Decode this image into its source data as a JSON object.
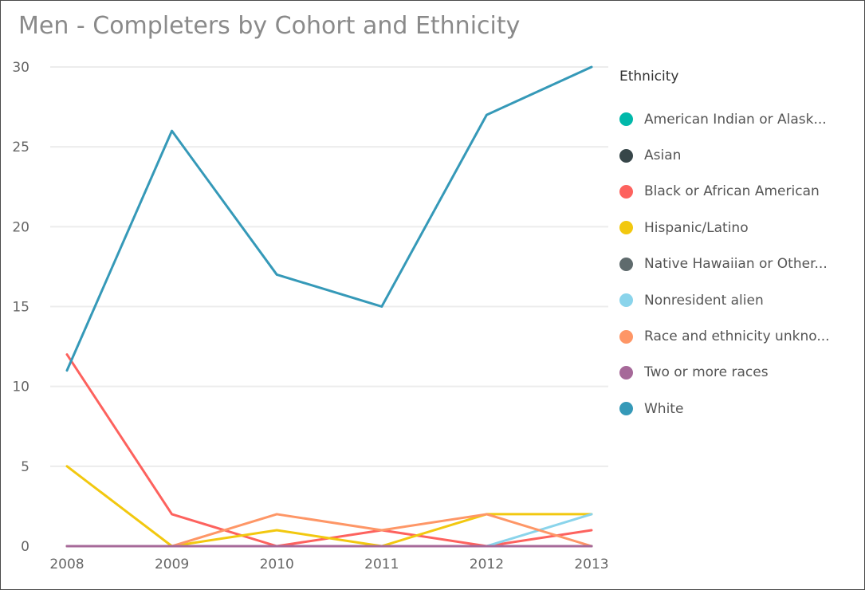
{
  "chart_data": {
    "type": "line",
    "title": "Men - Completers by Cohort and Ethnicity",
    "xlabel": "",
    "ylabel": "",
    "x": [
      "2008",
      "2009",
      "2010",
      "2011",
      "2012",
      "2013"
    ],
    "yticks": [
      "0",
      "5",
      "10",
      "15",
      "20",
      "25",
      "30"
    ],
    "ylim": [
      0,
      30
    ],
    "grid": true,
    "legend": {
      "title": "Ethnicity",
      "placement": "right"
    },
    "series": [
      {
        "name": "American Indian or Alask...",
        "color": "#01B8AA",
        "values": [
          0,
          0,
          0,
          0,
          0,
          0
        ]
      },
      {
        "name": "Asian",
        "color": "#374649",
        "values": [
          0,
          0,
          0,
          0,
          0,
          0
        ]
      },
      {
        "name": "Black or African American",
        "color": "#FD625E",
        "values": [
          12,
          2,
          0,
          1,
          0,
          1
        ]
      },
      {
        "name": "Hispanic/Latino",
        "color": "#F2C80F",
        "values": [
          5,
          0,
          1,
          0,
          2,
          2
        ]
      },
      {
        "name": "Native Hawaiian or Other...",
        "color": "#5F6B6D",
        "values": [
          0,
          0,
          0,
          0,
          0,
          0
        ]
      },
      {
        "name": "Nonresident alien",
        "color": "#8AD4EB",
        "values": [
          0,
          0,
          0,
          0,
          0,
          2
        ]
      },
      {
        "name": "Race and ethnicity unkno...",
        "color": "#FE9666",
        "values": [
          0,
          0,
          2,
          1,
          2,
          0
        ]
      },
      {
        "name": "Two or more races",
        "color": "#A66999",
        "values": [
          0,
          0,
          0,
          0,
          0,
          0
        ]
      },
      {
        "name": "White",
        "color": "#3599B8",
        "values": [
          11,
          26,
          17,
          15,
          27,
          30
        ]
      }
    ]
  }
}
